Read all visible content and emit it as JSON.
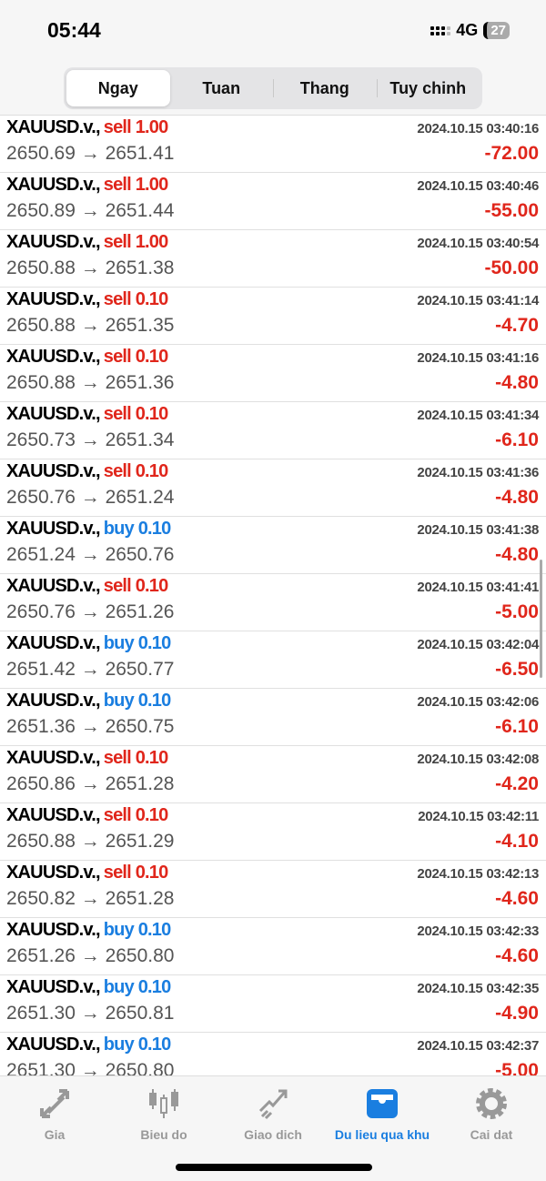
{
  "status": {
    "time": "05:44",
    "network": "4G",
    "battery": "27"
  },
  "tabs": [
    {
      "label": "Ngay",
      "active": true
    },
    {
      "label": "Tuan"
    },
    {
      "label": "Thang"
    },
    {
      "label": "Tuy chinh"
    }
  ],
  "colors": {
    "sell": "#e0261b",
    "buy": "#1a7ee0",
    "loss": "#e0261b",
    "active": "#1a7ee0"
  },
  "trades": [
    {
      "symbol": "XAUUSD.v.,",
      "side": "sell",
      "volume": "1.00",
      "date": "2024.10.15 03:40:16",
      "prices": "2650.69 → 2651.41",
      "profit": "-72.00"
    },
    {
      "symbol": "XAUUSD.v.,",
      "side": "sell",
      "volume": "1.00",
      "date": "2024.10.15 03:40:46",
      "prices": "2650.89 → 2651.44",
      "profit": "-55.00"
    },
    {
      "symbol": "XAUUSD.v.,",
      "side": "sell",
      "volume": "1.00",
      "date": "2024.10.15 03:40:54",
      "prices": "2650.88 → 2651.38",
      "profit": "-50.00"
    },
    {
      "symbol": "XAUUSD.v.,",
      "side": "sell",
      "volume": "0.10",
      "date": "2024.10.15 03:41:14",
      "prices": "2650.88 → 2651.35",
      "profit": "-4.70"
    },
    {
      "symbol": "XAUUSD.v.,",
      "side": "sell",
      "volume": "0.10",
      "date": "2024.10.15 03:41:16",
      "prices": "2650.88 → 2651.36",
      "profit": "-4.80"
    },
    {
      "symbol": "XAUUSD.v.,",
      "side": "sell",
      "volume": "0.10",
      "date": "2024.10.15 03:41:34",
      "prices": "2650.73 → 2651.34",
      "profit": "-6.10"
    },
    {
      "symbol": "XAUUSD.v.,",
      "side": "sell",
      "volume": "0.10",
      "date": "2024.10.15 03:41:36",
      "prices": "2650.76 → 2651.24",
      "profit": "-4.80"
    },
    {
      "symbol": "XAUUSD.v.,",
      "side": "buy",
      "volume": "0.10",
      "date": "2024.10.15 03:41:38",
      "prices": "2651.24 → 2650.76",
      "profit": "-4.80"
    },
    {
      "symbol": "XAUUSD.v.,",
      "side": "sell",
      "volume": "0.10",
      "date": "2024.10.15 03:41:41",
      "prices": "2650.76 → 2651.26",
      "profit": "-5.00"
    },
    {
      "symbol": "XAUUSD.v.,",
      "side": "buy",
      "volume": "0.10",
      "date": "2024.10.15 03:42:04",
      "prices": "2651.42 → 2650.77",
      "profit": "-6.50"
    },
    {
      "symbol": "XAUUSD.v.,",
      "side": "buy",
      "volume": "0.10",
      "date": "2024.10.15 03:42:06",
      "prices": "2651.36 → 2650.75",
      "profit": "-6.10"
    },
    {
      "symbol": "XAUUSD.v.,",
      "side": "sell",
      "volume": "0.10",
      "date": "2024.10.15 03:42:08",
      "prices": "2650.86 → 2651.28",
      "profit": "-4.20"
    },
    {
      "symbol": "XAUUSD.v.,",
      "side": "sell",
      "volume": "0.10",
      "date": "2024.10.15 03:42:11",
      "prices": "2650.88 → 2651.29",
      "profit": "-4.10"
    },
    {
      "symbol": "XAUUSD.v.,",
      "side": "sell",
      "volume": "0.10",
      "date": "2024.10.15 03:42:13",
      "prices": "2650.82 → 2651.28",
      "profit": "-4.60"
    },
    {
      "symbol": "XAUUSD.v.,",
      "side": "buy",
      "volume": "0.10",
      "date": "2024.10.15 03:42:33",
      "prices": "2651.26 → 2650.80",
      "profit": "-4.60"
    },
    {
      "symbol": "XAUUSD.v.,",
      "side": "buy",
      "volume": "0.10",
      "date": "2024.10.15 03:42:35",
      "prices": "2651.30 → 2650.81",
      "profit": "-4.90"
    },
    {
      "symbol": "XAUUSD.v.,",
      "side": "buy",
      "volume": "0.10",
      "date": "2024.10.15 03:42:37",
      "prices": "2651.30 → 2650.80",
      "profit": "-5.00"
    }
  ],
  "nav": [
    {
      "label": "Gia",
      "icon": "quotes-arrows-icon"
    },
    {
      "label": "Bieu do",
      "icon": "candlestick-chart-icon"
    },
    {
      "label": "Giao dich",
      "icon": "trade-trend-icon"
    },
    {
      "label": "Du lieu qua khu",
      "icon": "history-inbox-icon",
      "active": true
    },
    {
      "label": "Cai dat",
      "icon": "gear-icon"
    }
  ]
}
